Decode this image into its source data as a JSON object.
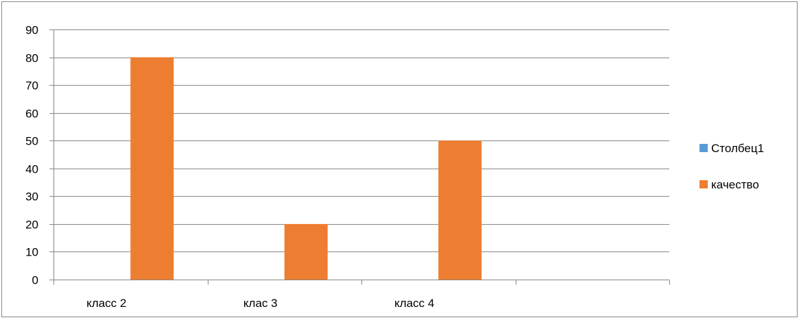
{
  "chart_data": {
    "type": "bar",
    "categories": [
      "класс 2",
      "клас 3",
      "класс 4",
      ""
    ],
    "series": [
      {
        "name": "Столбец1",
        "color": "#5B9BD5",
        "values": [
          null,
          null,
          null,
          null
        ]
      },
      {
        "name": "качество",
        "color": "#ED7D31",
        "values": [
          80,
          20,
          50,
          null
        ]
      }
    ],
    "ylim": [
      0,
      90
    ],
    "ytick_step": 10,
    "grid": true,
    "legend_position": "right",
    "title": "",
    "xlabel": "",
    "ylabel": ""
  }
}
